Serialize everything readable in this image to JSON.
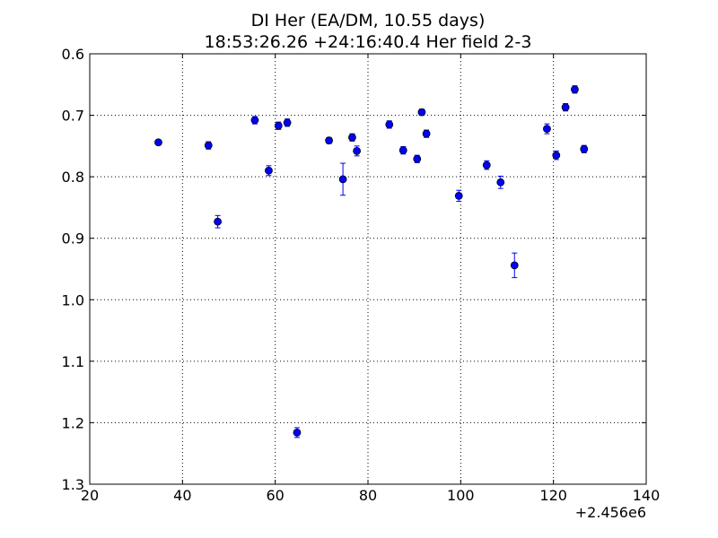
{
  "chart_data": {
    "type": "scatter",
    "title": "DI Her (EA/DM, 10.55 days)",
    "subtitle": "18:53:26.26 +24:16:40.4 Her field 2-3",
    "xlabel": "",
    "ylabel": "",
    "x_offset_label": "+2.456e6",
    "xlim": [
      20,
      140
    ],
    "ylim": [
      0.6,
      1.3
    ],
    "y_inverted": true,
    "grid": true,
    "x_ticks": [
      20,
      40,
      60,
      80,
      100,
      120,
      140
    ],
    "x_tick_labels": [
      "20",
      "40",
      "60",
      "80",
      "100",
      "120",
      "140"
    ],
    "y_ticks": [
      0.6,
      0.7,
      0.8,
      0.9,
      1.0,
      1.1,
      1.2,
      1.3
    ],
    "y_tick_labels": [
      "0.6",
      "0.7",
      "0.8",
      "0.9",
      "1.0",
      "1.1",
      "1.2",
      "1.3"
    ],
    "marker_color": "#0000ff",
    "errorbar_color": "#0000ff",
    "points": [
      {
        "x": 34.8,
        "y": 0.744,
        "err": 0.004
      },
      {
        "x": 45.6,
        "y": 0.749,
        "err": 0.006
      },
      {
        "x": 47.6,
        "y": 0.873,
        "err": 0.01
      },
      {
        "x": 55.6,
        "y": 0.708,
        "err": 0.006
      },
      {
        "x": 58.6,
        "y": 0.79,
        "err": 0.008
      },
      {
        "x": 60.7,
        "y": 0.717,
        "err": 0.006
      },
      {
        "x": 62.6,
        "y": 0.712,
        "err": 0.006
      },
      {
        "x": 64.7,
        "y": 1.216,
        "err": 0.008
      },
      {
        "x": 71.6,
        "y": 0.741,
        "err": 0.005
      },
      {
        "x": 74.6,
        "y": 0.804,
        "err": 0.026
      },
      {
        "x": 76.6,
        "y": 0.736,
        "err": 0.006
      },
      {
        "x": 77.6,
        "y": 0.758,
        "err": 0.008
      },
      {
        "x": 84.6,
        "y": 0.715,
        "err": 0.006
      },
      {
        "x": 87.6,
        "y": 0.757,
        "err": 0.006
      },
      {
        "x": 90.6,
        "y": 0.771,
        "err": 0.006
      },
      {
        "x": 91.6,
        "y": 0.695,
        "err": 0.005
      },
      {
        "x": 92.6,
        "y": 0.73,
        "err": 0.006
      },
      {
        "x": 99.6,
        "y": 0.831,
        "err": 0.009
      },
      {
        "x": 105.6,
        "y": 0.781,
        "err": 0.007
      },
      {
        "x": 108.6,
        "y": 0.809,
        "err": 0.01
      },
      {
        "x": 111.6,
        "y": 0.944,
        "err": 0.02
      },
      {
        "x": 118.6,
        "y": 0.722,
        "err": 0.008
      },
      {
        "x": 120.6,
        "y": 0.765,
        "err": 0.007
      },
      {
        "x": 122.6,
        "y": 0.687,
        "err": 0.006
      },
      {
        "x": 124.6,
        "y": 0.658,
        "err": 0.006
      },
      {
        "x": 126.6,
        "y": 0.755,
        "err": 0.006
      }
    ]
  }
}
